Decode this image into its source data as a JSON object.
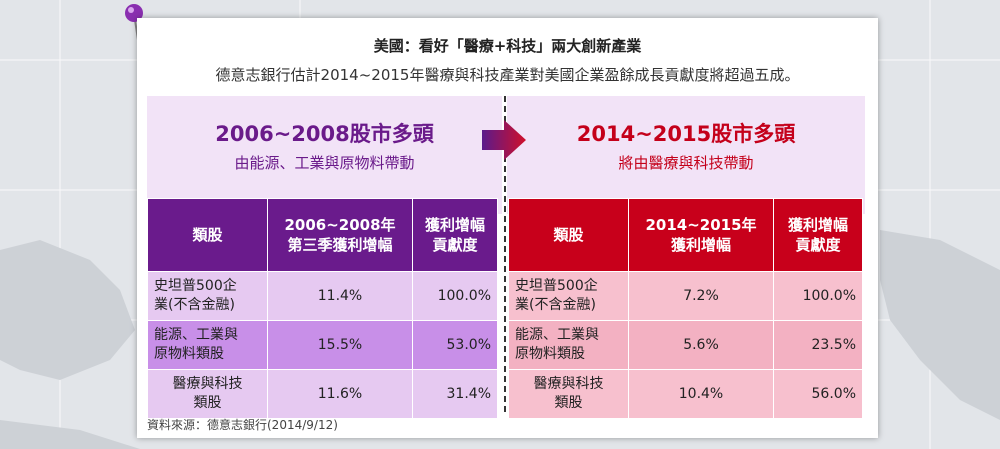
{
  "header": {
    "title": "美國：看好「醫療+科技」兩大創新產業",
    "subtitle": "德意志銀行估計2014~2015年醫療與科技產業對美國企業盈餘成長貢獻度將超過五成。"
  },
  "left_panel": {
    "heading": "2006~2008股市多頭",
    "subheading": "由能源、工業與原物料帶動",
    "columns": [
      "類股",
      "2006~2008年\n第三季獲利增幅",
      "獲利增幅\n貢獻度"
    ],
    "rows": [
      {
        "sector": "史坦普500企\n業(不含金融)",
        "growth": "11.4%",
        "contribution": "100.0%"
      },
      {
        "sector": "能源、工業與\n原物料類股",
        "growth": "15.5%",
        "contribution": "53.0%"
      },
      {
        "sector": "醫療與科技\n類股",
        "growth": "11.6%",
        "contribution": "31.4%"
      }
    ]
  },
  "right_panel": {
    "heading": "2014~2015股市多頭",
    "subheading": "將由醫療與科技帶動",
    "columns": [
      "類股",
      "2014~2015年\n獲利增幅",
      "獲利增幅\n貢獻度"
    ],
    "rows": [
      {
        "sector": "史坦普500企\n業(不含金融)",
        "growth": "7.2%",
        "contribution": "100.0%"
      },
      {
        "sector": "能源、工業與\n原物料類股",
        "growth": "5.6%",
        "contribution": "23.5%"
      },
      {
        "sector": "醫療與科技\n類股",
        "growth": "10.4%",
        "contribution": "56.0%"
      }
    ]
  },
  "source": "資料來源：德意志銀行(2014/9/12)",
  "icons": {
    "pin": "pushpin-icon",
    "arrow": "right-arrow-icon"
  },
  "colors": {
    "purple": "#6a1b8c",
    "red": "#c8001b",
    "panel_bg": "#f2e3f7"
  }
}
